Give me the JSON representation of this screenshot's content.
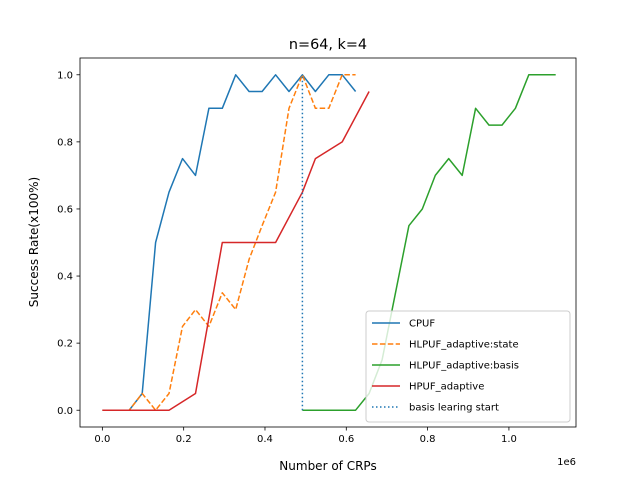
{
  "chart_data": {
    "type": "line",
    "title": "n=64, k=4",
    "xlabel": "Number of CRPs",
    "ylabel": "Success Rate(x100%)",
    "x_offset_text": "1e6",
    "xlim": [
      -0.055,
      1.165
    ],
    "ylim": [
      -0.05,
      1.05
    ],
    "x_ticks": [
      0.0,
      0.2,
      0.4,
      0.6,
      0.8,
      1.0
    ],
    "x_tick_labels": [
      "0.0",
      "0.2",
      "0.4",
      "0.6",
      "0.8",
      "1.0"
    ],
    "y_ticks": [
      0.0,
      0.2,
      0.4,
      0.6,
      0.8,
      1.0
    ],
    "y_tick_labels": [
      "0.0",
      "0.2",
      "0.4",
      "0.6",
      "0.8",
      "1.0"
    ],
    "grid": false,
    "legend_position": "lower-right",
    "series": [
      {
        "name": "CPUF",
        "color": "#1f77b4",
        "style": "solid",
        "x": [
          0.0,
          0.033,
          0.066,
          0.098,
          0.131,
          0.164,
          0.197,
          0.229,
          0.262,
          0.295,
          0.328,
          0.361,
          0.393,
          0.426,
          0.459,
          0.492,
          0.524,
          0.557,
          0.59,
          0.623
        ],
        "y": [
          0.0,
          0.0,
          0.0,
          0.05,
          0.5,
          0.65,
          0.75,
          0.7,
          0.9,
          0.9,
          1.0,
          0.95,
          0.95,
          1.0,
          0.95,
          1.0,
          0.95,
          1.0,
          1.0,
          0.95
        ]
      },
      {
        "name": "HLPUF_adaptive:state",
        "color": "#ff7f0e",
        "style": "dashed",
        "x": [
          0.0,
          0.033,
          0.066,
          0.098,
          0.131,
          0.164,
          0.197,
          0.229,
          0.262,
          0.295,
          0.328,
          0.361,
          0.393,
          0.426,
          0.459,
          0.492,
          0.524,
          0.557,
          0.59,
          0.623
        ],
        "y": [
          0.0,
          0.0,
          0.0,
          0.05,
          0.0,
          0.05,
          0.25,
          0.3,
          0.25,
          0.35,
          0.3,
          0.45,
          0.55,
          0.65,
          0.9,
          1.0,
          0.9,
          0.9,
          1.0,
          1.0
        ]
      },
      {
        "name": "HLPUF_adaptive:basis",
        "color": "#2ca02c",
        "style": "solid",
        "x": [
          0.492,
          0.524,
          0.557,
          0.59,
          0.623,
          0.656,
          0.688,
          0.721,
          0.754,
          0.787,
          0.819,
          0.852,
          0.885,
          0.918,
          0.951,
          0.983,
          1.016,
          1.049,
          1.082,
          1.115
        ],
        "y": [
          0.0,
          0.0,
          0.0,
          0.0,
          0.0,
          0.05,
          0.15,
          0.35,
          0.55,
          0.6,
          0.7,
          0.75,
          0.7,
          0.9,
          0.85,
          0.85,
          0.9,
          1.0,
          1.0,
          1.0
        ]
      },
      {
        "name": "HPUF_adaptive",
        "color": "#d62728",
        "style": "solid",
        "x": [
          0.0,
          0.066,
          0.131,
          0.164,
          0.229,
          0.295,
          0.361,
          0.426,
          0.492,
          0.524,
          0.59,
          0.656
        ],
        "y": [
          0.0,
          0.0,
          0.0,
          0.0,
          0.05,
          0.5,
          0.5,
          0.5,
          0.65,
          0.75,
          0.8,
          0.95
        ]
      },
      {
        "name": "basis learing start",
        "color": "#1f77b4",
        "style": "dotted",
        "x": [
          0.492,
          0.492
        ],
        "y": [
          0.0,
          1.0
        ]
      }
    ]
  }
}
